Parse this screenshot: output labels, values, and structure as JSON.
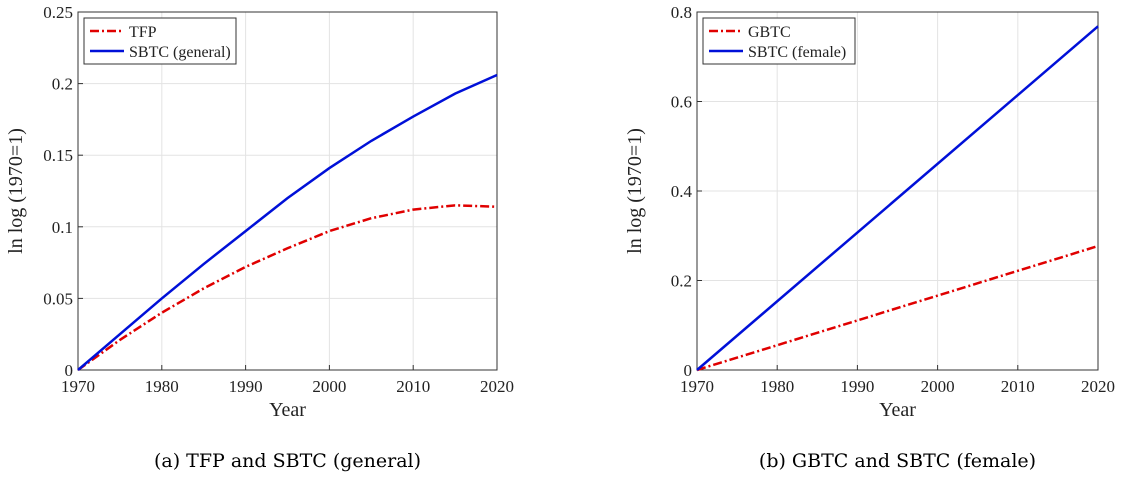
{
  "chart_data": [
    {
      "type": "line",
      "caption": "(a) TFP and SBTC (general)",
      "xlabel": "Year",
      "ylabel": "ln log (1970=1)",
      "x": [
        1970,
        1975,
        1980,
        1985,
        1990,
        1995,
        2000,
        2005,
        2010,
        2015,
        2020
      ],
      "series": [
        {
          "name": "TFP",
          "color": "#e00000",
          "dash": true,
          "values": [
            0,
            0.021,
            0.04,
            0.057,
            0.072,
            0.085,
            0.097,
            0.106,
            0.112,
            0.115,
            0.114
          ]
        },
        {
          "name": "SBTC (general)",
          "color": "#0010d8",
          "dash": false,
          "values": [
            0,
            0.025,
            0.05,
            0.074,
            0.097,
            0.12,
            0.141,
            0.16,
            0.177,
            0.193,
            0.206
          ]
        }
      ],
      "xlim": [
        1970,
        2020
      ],
      "xticks": [
        1970,
        1980,
        1990,
        2000,
        2010,
        2020
      ],
      "ylim": [
        0,
        0.25
      ],
      "yticks": [
        0,
        0.05,
        0.1,
        0.15,
        0.2,
        0.25
      ],
      "grid": true,
      "legend": "top-left"
    },
    {
      "type": "line",
      "caption": "(b) GBTC and SBTC (female)",
      "xlabel": "Year",
      "ylabel": "ln log (1970=1)",
      "x": [
        1970,
        2020
      ],
      "series": [
        {
          "name": "GBTC",
          "color": "#e00000",
          "dash": true,
          "values": [
            0,
            0.277
          ]
        },
        {
          "name": "SBTC (female)",
          "color": "#0010d8",
          "dash": false,
          "values": [
            0,
            0.768
          ]
        }
      ],
      "xlim": [
        1970,
        2020
      ],
      "xticks": [
        1970,
        1980,
        1990,
        2000,
        2010,
        2020
      ],
      "ylim": [
        0,
        0.8
      ],
      "yticks": [
        0,
        0.2,
        0.4,
        0.6,
        0.8
      ],
      "grid": true,
      "legend": "top-left"
    }
  ]
}
